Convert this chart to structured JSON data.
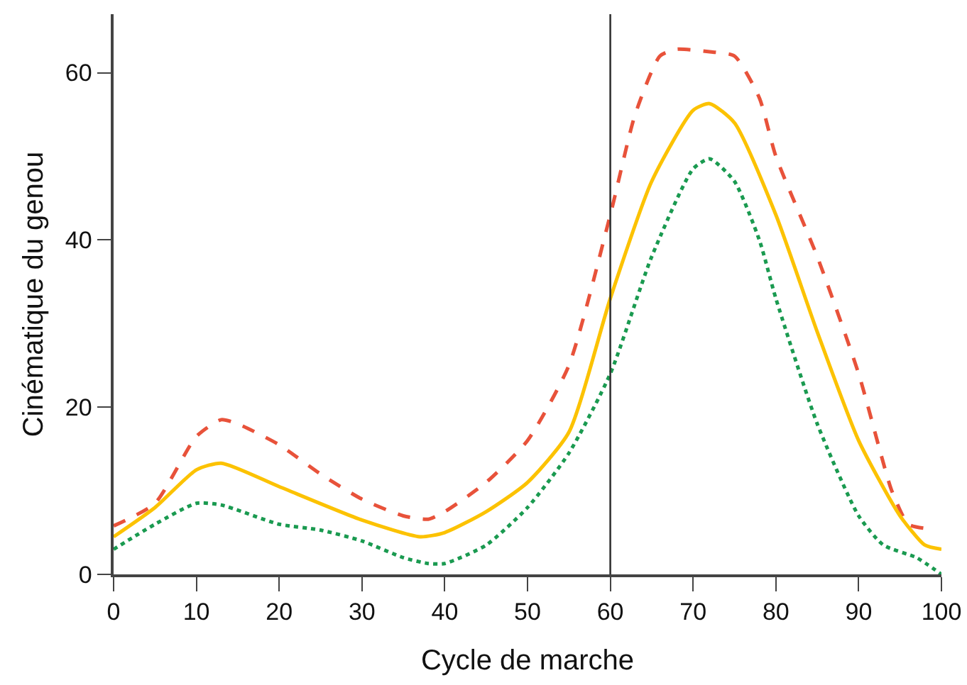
{
  "chart_data": {
    "type": "line",
    "xlabel": "Cycle de marche",
    "ylabel": "Cinématique du genou",
    "xlim": [
      0,
      100
    ],
    "ylim": [
      0,
      67
    ],
    "xticks": [
      0,
      10,
      20,
      30,
      40,
      50,
      60,
      70,
      80,
      90,
      100
    ],
    "yticks": [
      0,
      20,
      40,
      60
    ],
    "grid": false,
    "marker": "none",
    "ref_lines": [
      {
        "axis": "x",
        "value": 60,
        "color": "#333333",
        "line_style": "solid"
      }
    ],
    "series": [
      {
        "color": "#e8523a",
        "line_style": "dashed",
        "x": [
          0,
          5,
          10,
          13,
          15,
          20,
          25,
          30,
          35,
          38,
          40,
          45,
          50,
          55,
          60,
          63,
          66,
          68,
          72,
          75,
          78,
          80,
          85,
          90,
          94,
          96,
          98
        ],
        "values": [
          5.8,
          8.5,
          16.5,
          18.5,
          18,
          15.5,
          12,
          9,
          7,
          6.6,
          7.5,
          11,
          16,
          25,
          43,
          55,
          62,
          62.8,
          62.5,
          62,
          57,
          50,
          38,
          24,
          10,
          6,
          5.5
        ]
      },
      {
        "color": "#fcc200",
        "line_style": "solid",
        "x": [
          0,
          5,
          10,
          13,
          20,
          30,
          37,
          40,
          45,
          50,
          55,
          60,
          65,
          70,
          72,
          75,
          80,
          85,
          90,
          95,
          98,
          100
        ],
        "values": [
          4.5,
          8,
          12.5,
          13.3,
          10.5,
          6.5,
          4.5,
          5,
          7.5,
          11,
          17,
          33,
          47,
          55.5,
          56.3,
          54,
          43,
          29,
          16,
          7,
          3.5,
          3
        ]
      },
      {
        "color": "#1a9a50",
        "line_style": "dotted",
        "x": [
          0,
          5,
          10,
          13,
          20,
          25,
          30,
          35,
          38,
          40,
          45,
          50,
          55,
          60,
          65,
          70,
          72,
          75,
          78,
          80,
          85,
          90,
          93,
          97,
          100
        ],
        "values": [
          3,
          6,
          8.5,
          8.3,
          6,
          5.3,
          4,
          2,
          1.3,
          1.3,
          3.5,
          8,
          14.5,
          24,
          38,
          48.5,
          49.7,
          47,
          40,
          33,
          18,
          7,
          3.5,
          2,
          0
        ]
      }
    ]
  }
}
